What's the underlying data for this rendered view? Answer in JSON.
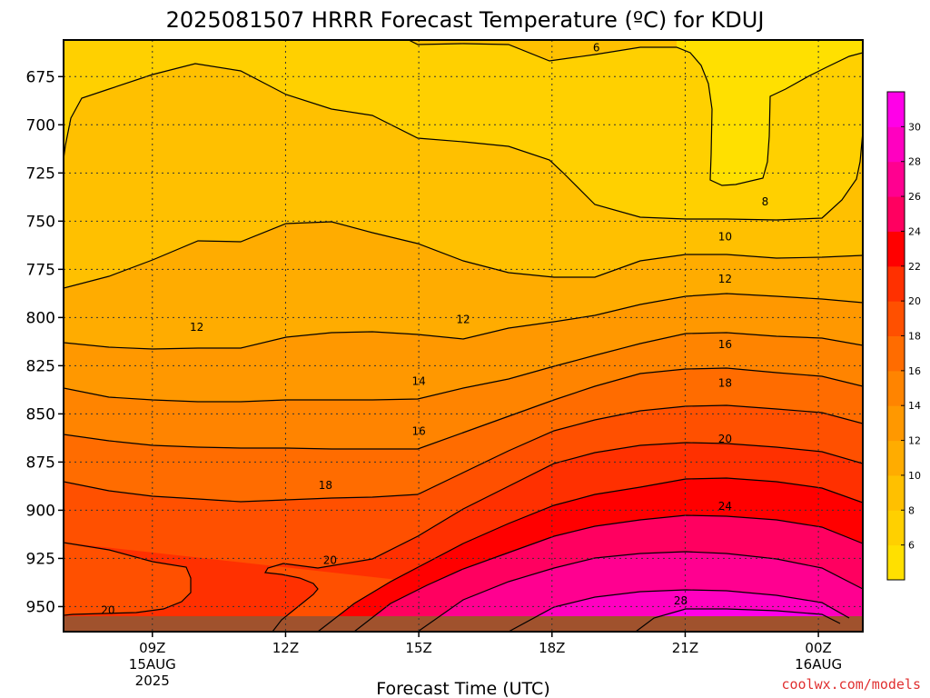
{
  "chart_data": {
    "type": "contour",
    "title": "2025081507 HRRR Forecast Temperature (ºC) for KDUJ",
    "xlabel": "Forecast Time (UTC)",
    "ylabel": "",
    "credit": "coolwx.com/models",
    "x_axis": {
      "range_hours": [
        7,
        25
      ],
      "ticks": [
        {
          "hour": 9,
          "lines": [
            "09Z",
            "15AUG",
            "2025"
          ]
        },
        {
          "hour": 12,
          "lines": [
            "12Z"
          ]
        },
        {
          "hour": 15,
          "lines": [
            "15Z"
          ]
        },
        {
          "hour": 18,
          "lines": [
            "18Z"
          ]
        },
        {
          "hour": 21,
          "lines": [
            "21Z"
          ]
        },
        {
          "hour": 24,
          "lines": [
            "00Z",
            "16AUG"
          ]
        }
      ]
    },
    "y_axis": {
      "unit": "hPa",
      "range": [
        656,
        963
      ],
      "ticks": [
        675,
        700,
        725,
        750,
        775,
        800,
        825,
        850,
        875,
        900,
        925,
        950
      ],
      "ground_level": 957
    },
    "colorbar": {
      "ticks": [
        6,
        8,
        10,
        12,
        14,
        16,
        18,
        20,
        22,
        24,
        26,
        28,
        30
      ],
      "colors": [
        "#ffe000",
        "#ffd000",
        "#ffc000",
        "#ffac00",
        "#ff9800",
        "#ff8400",
        "#ff6c00",
        "#ff5000",
        "#ff3000",
        "#ff0000",
        "#ff0060",
        "#ff0090",
        "#ff00c0",
        "#ff00e8"
      ]
    },
    "contours": [
      {
        "level": 6,
        "label": "6",
        "label_at": [
          19.0,
          660
        ]
      },
      {
        "level": 8,
        "label": "8",
        "label_at": [
          22.8,
          740
        ]
      },
      {
        "level": 10,
        "label": "10",
        "label_at": [
          21.9,
          758
        ]
      },
      {
        "level": 12,
        "label": "12",
        "label_at": [
          10.0,
          805
        ]
      },
      {
        "level": 12,
        "label": "12",
        "label_at": [
          16.0,
          801
        ]
      },
      {
        "level": 12,
        "label": "12",
        "label_at": [
          21.9,
          780
        ]
      },
      {
        "level": 14,
        "label": "14",
        "label_at": [
          15.0,
          833
        ]
      },
      {
        "level": 16,
        "label": "16",
        "label_at": [
          15.0,
          859
        ]
      },
      {
        "level": 16,
        "label": "16",
        "label_at": [
          21.9,
          814
        ]
      },
      {
        "level": 18,
        "label": "18",
        "label_at": [
          12.9,
          887
        ]
      },
      {
        "level": 18,
        "label": "18",
        "label_at": [
          21.9,
          834
        ]
      },
      {
        "level": 20,
        "label": "20",
        "label_at": [
          13.0,
          926
        ]
      },
      {
        "level": 20,
        "label": "20",
        "label_at": [
          8.0,
          952
        ]
      },
      {
        "level": 20,
        "label": "20",
        "label_at": [
          21.9,
          863
        ]
      },
      {
        "level": 24,
        "label": "24",
        "label_at": [
          21.9,
          898
        ]
      },
      {
        "level": 28,
        "label": "28",
        "label_at": [
          20.9,
          947
        ]
      }
    ]
  }
}
